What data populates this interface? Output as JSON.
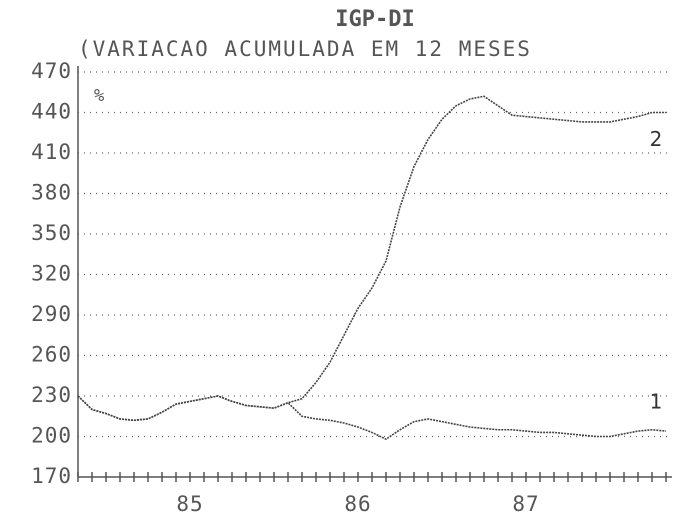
{
  "chart_data": {
    "type": "line",
    "title": "IGP-DI",
    "subtitle": "(VARIACAO ACUMULADA EM 12 MESES",
    "y_label": "%",
    "categories": [
      null,
      null,
      null,
      null,
      null,
      null,
      null,
      null,
      "85",
      null,
      null,
      null,
      null,
      null,
      null,
      null,
      null,
      null,
      null,
      null,
      "86",
      null,
      null,
      null,
      null,
      null,
      null,
      null,
      null,
      null,
      null,
      null,
      "87",
      null,
      null,
      null,
      null,
      null,
      null,
      null,
      null,
      null,
      null
    ],
    "series": [
      {
        "name": "1",
        "color": "#444444",
        "values": [
          230,
          220,
          217,
          213,
          212,
          213,
          218,
          224,
          226,
          228,
          230,
          226,
          223,
          222,
          221,
          225,
          215,
          213,
          212,
          210,
          207,
          203,
          198,
          205,
          211,
          213,
          211,
          209,
          207,
          206,
          205,
          205,
          204,
          203,
          203,
          202,
          201,
          200,
          200,
          202,
          204,
          205,
          204
        ]
      },
      {
        "name": "2",
        "color": "#444444",
        "values": [
          230,
          220,
          217,
          213,
          212,
          213,
          218,
          224,
          226,
          228,
          230,
          226,
          223,
          222,
          221,
          225,
          228,
          240,
          255,
          275,
          295,
          310,
          330,
          370,
          400,
          420,
          435,
          445,
          450,
          452,
          445,
          438,
          437,
          436,
          435,
          434,
          433,
          433,
          433,
          435,
          437,
          440,
          440
        ]
      }
    ],
    "ylim": [
      170,
      470
    ],
    "yticks": [
      170,
      200,
      230,
      260,
      290,
      320,
      350,
      380,
      410,
      440,
      470
    ],
    "grid": true
  }
}
